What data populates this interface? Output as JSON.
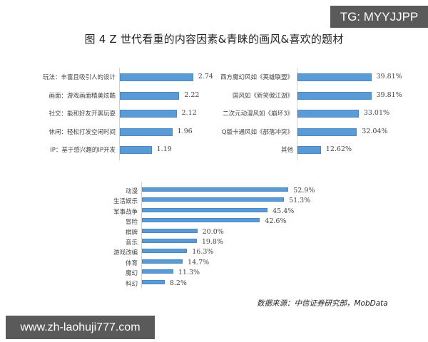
{
  "watermark_top": "TG: MYYJJPP",
  "watermark_bottom": "www.zh-laohuji777.com",
  "title": "图 4   Z 世代看重的内容因素&青睐的画风&喜欢的题材",
  "source": "数据来源：中信证券研究部，MobData",
  "bar_color": "#5b9bd5",
  "chart_data": [
    {
      "type": "bar",
      "orientation": "horizontal",
      "title": "Z世代看重的内容因素",
      "categories": [
        "玩法：丰富且吸引人的设计",
        "画面：游戏画面精美炫酷",
        "社交：能和好友开黑玩耍",
        "休闲：轻松打发空闲时间",
        "IP：基于感兴趣的IP开发"
      ],
      "values": [
        2.74,
        2.22,
        2.12,
        1.96,
        1.19
      ],
      "labels": [
        "2.74",
        "2.22",
        "2.12",
        "1.96",
        "1.19"
      ]
    },
    {
      "type": "bar",
      "orientation": "horizontal",
      "title": "Z世代青睐的画风",
      "categories": [
        "西方魔幻风如《英雄联盟》",
        "国风如《新笑傲江湖》",
        "二次元动漫风如《崩坏3》",
        "Q版卡通风如《部落冲突》",
        "其他"
      ],
      "values": [
        39.81,
        39.81,
        33.01,
        32.04,
        12.62
      ],
      "labels": [
        "39.81%",
        "39.81%",
        "33.01%",
        "32.04%",
        "12.62%"
      ]
    },
    {
      "type": "bar",
      "orientation": "horizontal",
      "title": "Z世代喜欢的题材",
      "categories": [
        "动漫",
        "生活娱乐",
        "军事战争",
        "冒险",
        "棋牌",
        "音乐",
        "游戏改编",
        "体育",
        "魔幻",
        "科幻"
      ],
      "values": [
        52.9,
        51.3,
        45.4,
        42.6,
        20.0,
        19.8,
        16.3,
        14.7,
        11.3,
        8.2
      ],
      "labels": [
        "52.9%",
        "51.3%",
        "45.4%",
        "42.6%",
        "20.0%",
        "19.8%",
        "16.3%",
        "14.7%",
        "11.3%",
        "8.2%"
      ]
    }
  ]
}
